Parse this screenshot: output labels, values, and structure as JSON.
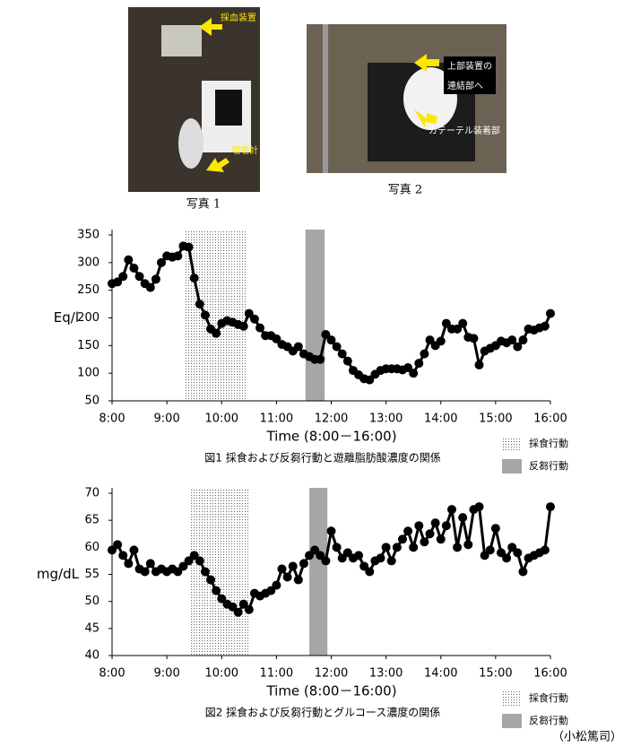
{
  "photos": [
    {
      "caption": "写真 1",
      "labels": [
        "採血装置",
        "咀嚼計"
      ]
    },
    {
      "caption": "写真 2",
      "labels": [
        "上部装置の",
        "連結部へ",
        "カテーテル装着部"
      ]
    }
  ],
  "chart_data": [
    {
      "type": "line",
      "caption": "図1  採食および反芻行動と遊離脂肪酸濃度の関係",
      "ylabel": "Eq/l",
      "xlabel": "Time (8:00－16:00)",
      "color": "#000000",
      "periods": [
        {
          "name": "採食行動",
          "start": 9.34,
          "end": 10.45,
          "pattern": "dots"
        },
        {
          "name": "反芻行動",
          "start": 11.53,
          "end": 11.88,
          "color": "#a6a6a6"
        }
      ],
      "xlim": [
        8,
        16
      ],
      "ylim": [
        50,
        350
      ],
      "yticks": [
        50,
        100,
        150,
        200,
        250,
        300,
        350
      ],
      "xticks": [
        {
          "value": 8,
          "label": "8:00"
        },
        {
          "value": 9,
          "label": "9:00"
        },
        {
          "value": 10,
          "label": "10:00"
        },
        {
          "value": 11,
          "label": "11:00"
        },
        {
          "value": 12,
          "label": "12:00"
        },
        {
          "value": 13,
          "label": "13:00"
        },
        {
          "value": 14,
          "label": "14:00"
        },
        {
          "value": 15,
          "label": "15:00"
        },
        {
          "value": 16,
          "label": "16:00"
        }
      ],
      "x": [
        8,
        8.1,
        8.2,
        8.3,
        8.4,
        8.5,
        8.6,
        8.7,
        8.8,
        8.9,
        9,
        9.1,
        9.2,
        9.3,
        9.4,
        9.5,
        9.6,
        9.7,
        9.8,
        9.9,
        10,
        10.1,
        10.2,
        10.3,
        10.4,
        10.5,
        10.6,
        10.7,
        10.8,
        10.9,
        11,
        11.1,
        11.2,
        11.3,
        11.4,
        11.5,
        11.6,
        11.7,
        11.8,
        11.9,
        12,
        12.1,
        12.2,
        12.3,
        12.4,
        12.5,
        12.6,
        12.7,
        12.8,
        12.9,
        13,
        13.1,
        13.2,
        13.3,
        13.4,
        13.5,
        13.6,
        13.7,
        13.8,
        13.9,
        14,
        14.1,
        14.2,
        14.3,
        14.4,
        14.5,
        14.6,
        14.7,
        14.8,
        14.9,
        15,
        15.1,
        15.2,
        15.3,
        15.4,
        15.5,
        15.6,
        15.7,
        15.8,
        15.9,
        16
      ],
      "values": [
        262,
        265,
        275,
        305,
        290,
        275,
        262,
        255,
        270,
        300,
        312,
        310,
        312,
        330,
        328,
        272,
        225,
        205,
        180,
        172,
        190,
        195,
        192,
        188,
        185,
        208,
        198,
        182,
        168,
        168,
        162,
        152,
        148,
        140,
        148,
        135,
        130,
        125,
        125,
        170,
        160,
        148,
        135,
        122,
        105,
        97,
        90,
        88,
        98,
        105,
        108,
        108,
        108,
        106,
        110,
        100,
        118,
        135,
        160,
        150,
        158,
        190,
        180,
        180,
        190,
        165,
        163,
        115,
        140,
        145,
        150,
        158,
        155,
        160,
        148,
        160,
        180,
        178,
        182,
        185,
        208
      ]
    },
    {
      "type": "line",
      "caption": "図2  採食および反芻行動とグルコース濃度の関係",
      "ylabel": "mg/dL",
      "xlabel": "Time (8:00－16:00)",
      "color": "#000000",
      "periods": [
        {
          "name": "採食行動",
          "start": 9.41,
          "end": 10.52,
          "pattern": "dots"
        },
        {
          "name": "反芻行動",
          "start": 11.6,
          "end": 11.93,
          "color": "#a6a6a6"
        }
      ],
      "xlim": [
        8,
        16
      ],
      "ylim": [
        40,
        70
      ],
      "yticks": [
        40,
        45,
        50,
        55,
        60,
        65,
        70
      ],
      "xticks": [
        {
          "value": 8,
          "label": "8:00"
        },
        {
          "value": 9,
          "label": "9:00"
        },
        {
          "value": 10,
          "label": "10:00"
        },
        {
          "value": 11,
          "label": "11:00"
        },
        {
          "value": 12,
          "label": "12:00"
        },
        {
          "value": 13,
          "label": "13:00"
        },
        {
          "value": 14,
          "label": "14:00"
        },
        {
          "value": 15,
          "label": "15:00"
        },
        {
          "value": 16,
          "label": "16:00"
        }
      ],
      "x": [
        8,
        8.1,
        8.2,
        8.3,
        8.4,
        8.5,
        8.6,
        8.7,
        8.8,
        8.9,
        9,
        9.1,
        9.2,
        9.3,
        9.4,
        9.5,
        9.6,
        9.7,
        9.8,
        9.9,
        10,
        10.1,
        10.2,
        10.3,
        10.4,
        10.5,
        10.6,
        10.7,
        10.8,
        10.9,
        11,
        11.1,
        11.2,
        11.3,
        11.4,
        11.5,
        11.6,
        11.7,
        11.8,
        11.9,
        12,
        12.1,
        12.2,
        12.3,
        12.4,
        12.5,
        12.6,
        12.7,
        12.8,
        12.9,
        13,
        13.1,
        13.2,
        13.3,
        13.4,
        13.5,
        13.6,
        13.7,
        13.8,
        13.9,
        14,
        14.1,
        14.2,
        14.3,
        14.4,
        14.5,
        14.6,
        14.7,
        14.8,
        14.9,
        15,
        15.1,
        15.2,
        15.3,
        15.4,
        15.5,
        15.6,
        15.7,
        15.8,
        15.9,
        16
      ],
      "values": [
        59.5,
        60.5,
        58.5,
        57,
        59.5,
        56,
        55.5,
        57,
        55.5,
        56,
        55.5,
        56,
        55.5,
        56.5,
        57.5,
        58.5,
        57.5,
        55.5,
        54,
        52,
        50.5,
        49.5,
        49,
        48,
        49.5,
        48.5,
        51.5,
        51,
        51.5,
        52,
        53,
        56,
        54.5,
        56.5,
        54,
        57,
        58.5,
        59.5,
        58.5,
        57.5,
        63,
        60,
        58,
        59,
        58,
        58.5,
        56.5,
        55.5,
        57.5,
        58,
        60,
        57.5,
        60,
        61.5,
        63,
        60,
        64,
        61,
        62.5,
        64.5,
        61.5,
        64,
        67,
        60,
        65.5,
        60.5,
        67,
        67.5,
        58.5,
        59.5,
        63.5,
        59,
        58,
        60,
        59,
        55.5,
        58,
        58.5,
        59,
        59.5,
        67.5
      ]
    }
  ],
  "author": "（小松篤司）"
}
